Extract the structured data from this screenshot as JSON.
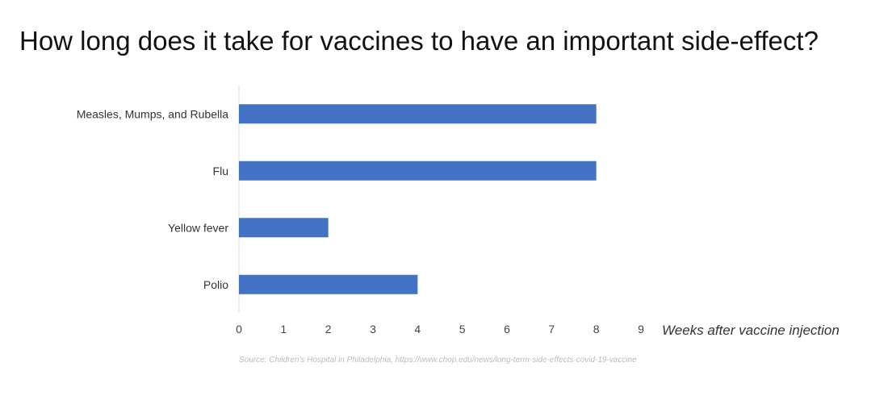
{
  "chart_data": {
    "type": "bar",
    "orientation": "horizontal",
    "title": "How long does it take for vaccines to have an important side-effect?",
    "xlabel": "Weeks after vaccine injection",
    "ylabel": "",
    "categories": [
      "Measles, Mumps, and Rubella",
      "Flu",
      "Yellow fever",
      "Polio"
    ],
    "values": [
      8,
      8,
      2,
      4
    ],
    "xlim": [
      0,
      9
    ],
    "xticks": [
      "0",
      "1",
      "2",
      "3",
      "4",
      "5",
      "6",
      "7",
      "8",
      "9"
    ],
    "grid": false,
    "legend": "none",
    "bar_color": "#4472c4",
    "source": "Source: Children's Hospital in Philadelphia, https://www.chop.edu/news/long-term-side-effects-covid-19-vaccine"
  }
}
